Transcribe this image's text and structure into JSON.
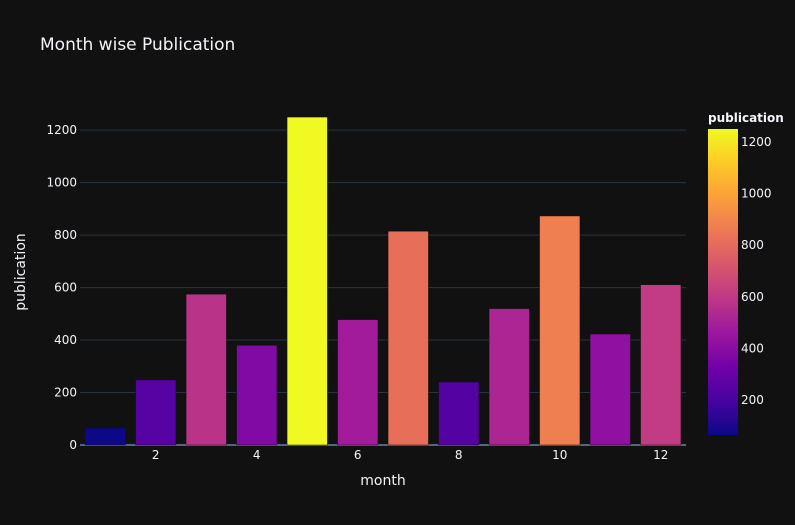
{
  "chart_data": {
    "type": "bar",
    "title": "Month wise Publication",
    "xlabel": "month",
    "ylabel": "publication",
    "x": [
      1,
      2,
      3,
      4,
      5,
      6,
      7,
      8,
      9,
      10,
      11,
      12
    ],
    "values": [
      65,
      248,
      575,
      380,
      1250,
      478,
      815,
      240,
      520,
      873,
      423,
      611
    ],
    "xticks": [
      2,
      4,
      6,
      8,
      10,
      12
    ],
    "yticks": [
      0,
      200,
      400,
      600,
      800,
      1000,
      1200
    ],
    "ylim": [
      0,
      1315
    ],
    "xlim": [
      0.5,
      12.5
    ],
    "grid": true,
    "colorbar": {
      "title": "publication",
      "ticks": [
        200,
        400,
        600,
        800,
        1000,
        1200
      ],
      "range": [
        65,
        1250
      ],
      "colorscale": [
        "#0d0887",
        "#46039f",
        "#7201a8",
        "#9c179e",
        "#bd3786",
        "#d8576b",
        "#ed7953",
        "#fb9f3a",
        "#fdca26",
        "#f0f921"
      ]
    },
    "colors": {
      "background": "#111111",
      "grid": "#283442",
      "text": "#f2f5fa"
    }
  }
}
